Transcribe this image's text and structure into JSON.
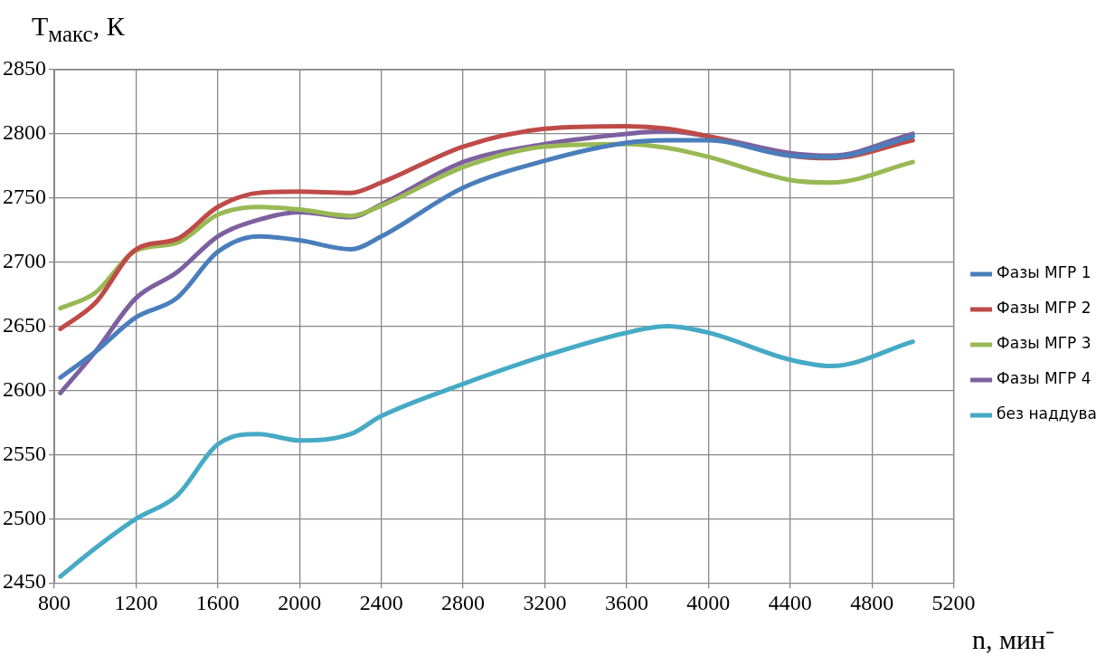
{
  "chart_data": {
    "type": "line",
    "ylabel": "T$_{макс}$, К",
    "xlabel": "n, мин⁻",
    "xlim": [
      800,
      5200
    ],
    "xticks": [
      800,
      1200,
      1600,
      2000,
      2400,
      2800,
      3200,
      3600,
      4000,
      4400,
      4800,
      5200
    ],
    "ylim": [
      2450,
      2850
    ],
    "yticks": [
      2450,
      2500,
      2550,
      2600,
      2650,
      2700,
      2750,
      2800,
      2850
    ],
    "grid": true,
    "legend": "right",
    "marker": "none",
    "line_style": "solid",
    "x": [
      830,
      1000,
      1200,
      1400,
      1600,
      1800,
      2000,
      2250,
      2400,
      2800,
      3200,
      3600,
      3800,
      4000,
      4400,
      4600,
      5000
    ],
    "series": [
      {
        "name": "Фазы МГР 1",
        "color": "#4a7ebb",
        "values": [
          2610,
          2630,
          2657,
          2672,
          2708,
          2720,
          2717,
          2710,
          2720,
          2758,
          2779,
          2793,
          2795,
          2795,
          2783,
          2782,
          2798
        ]
      },
      {
        "name": "Фазы МГР 2",
        "color": "#be4b48",
        "values": [
          2648,
          2668,
          2710,
          2718,
          2743,
          2754,
          2755,
          2754,
          2762,
          2790,
          2804,
          2806,
          2804,
          2798,
          2783,
          2781,
          2795
        ]
      },
      {
        "name": "Фазы МГР 3",
        "color": "#98b954",
        "values": [
          2664,
          2676,
          2709,
          2715,
          2737,
          2743,
          2741,
          2736,
          2744,
          2774,
          2790,
          2792,
          2789,
          2782,
          2764,
          2762,
          2778
        ]
      },
      {
        "name": "Фазы МГР 4",
        "color": "#7d60a0",
        "values": [
          2598,
          2630,
          2672,
          2692,
          2720,
          2733,
          2739,
          2735,
          2745,
          2778,
          2792,
          2800,
          2802,
          2798,
          2785,
          2783,
          2800
        ]
      },
      {
        "name": "без наддува",
        "color": "#46aac5",
        "values": [
          2455,
          2477,
          2500,
          2518,
          2558,
          2566,
          2561,
          2566,
          2580,
          2605,
          2627,
          2645,
          2650,
          2645,
          2624,
          2619,
          2638
        ]
      }
    ]
  }
}
